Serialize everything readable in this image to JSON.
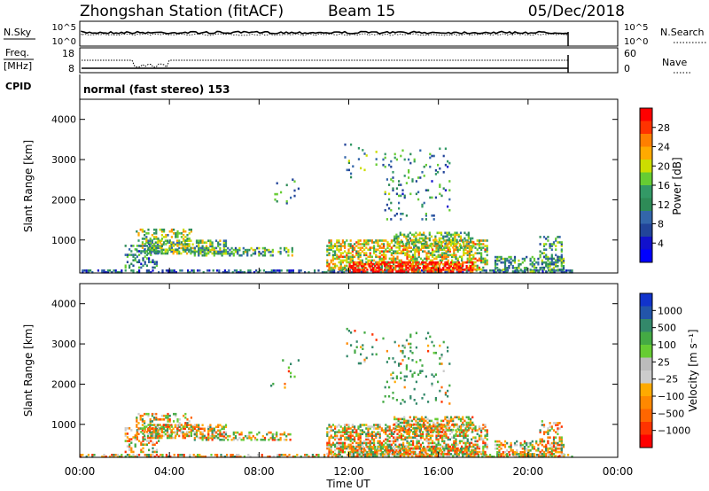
{
  "header": {
    "station": "Zhongshan Station (fitACF)",
    "beam": "Beam 15",
    "date": "05/Dec/2018"
  },
  "panels": {
    "nsky": {
      "label": "N.Sky",
      "ticks": [
        "10^5",
        "10^0"
      ],
      "right_label": "N.Search",
      "right_ticks": [
        "10^5",
        "10^0"
      ]
    },
    "freq": {
      "label_line1": "Freq.",
      "label_line2": "[MHz]",
      "ticks": [
        "18",
        "8"
      ],
      "right_label": "Nave",
      "right_ticks": [
        "60",
        "0"
      ]
    },
    "cpid": {
      "label": "CPID",
      "value": "normal (fast stereo) 153"
    }
  },
  "chart_data": [
    {
      "type": "heatmap",
      "name": "power",
      "ylabel": "Slant Range [km]",
      "xlabel": "Time UT",
      "x_ticks": [
        "00:00",
        "04:00",
        "08:00",
        "12:00",
        "16:00",
        "20:00",
        "00:00"
      ],
      "y_ticks": [
        1000,
        2000,
        3000,
        4000
      ],
      "ylim": [
        180,
        4500
      ],
      "xlim_hours": [
        0,
        24
      ],
      "colorbar_label": "Power [dB]",
      "colorbar_ticks": [
        "28",
        "24",
        "20",
        "16",
        "12",
        "8",
        "4"
      ],
      "colorbar_colors": [
        "#ff0000",
        "#ff3300",
        "#ff7f00",
        "#ffaa00",
        "#ccdd00",
        "#66cc33",
        "#339966",
        "#2e8b57",
        "#3366aa",
        "#224499",
        "#1111cc",
        "#0000ff"
      ]
    },
    {
      "type": "heatmap",
      "name": "velocity",
      "ylabel": "Slant Range [km]",
      "xlabel": "Time UT",
      "x_ticks": [
        "00:00",
        "04:00",
        "08:00",
        "12:00",
        "16:00",
        "20:00",
        "00:00"
      ],
      "y_ticks": [
        1000,
        2000,
        3000,
        4000
      ],
      "ylim": [
        180,
        4500
      ],
      "xlim_hours": [
        0,
        24
      ],
      "colorbar_label": "Velocity [m s⁻¹]",
      "colorbar_ticks": [
        "1000",
        "500",
        "100",
        "25",
        "−25",
        "−100",
        "−500",
        "−1000"
      ],
      "colorbar_colors": [
        "#1133cc",
        "#2255aa",
        "#33886a",
        "#44aa44",
        "#66cc33",
        "#bbbbbb",
        "#cccccc",
        "#ffaa00",
        "#ff8800",
        "#ff6600",
        "#ff3300",
        "#ff0000"
      ]
    }
  ]
}
